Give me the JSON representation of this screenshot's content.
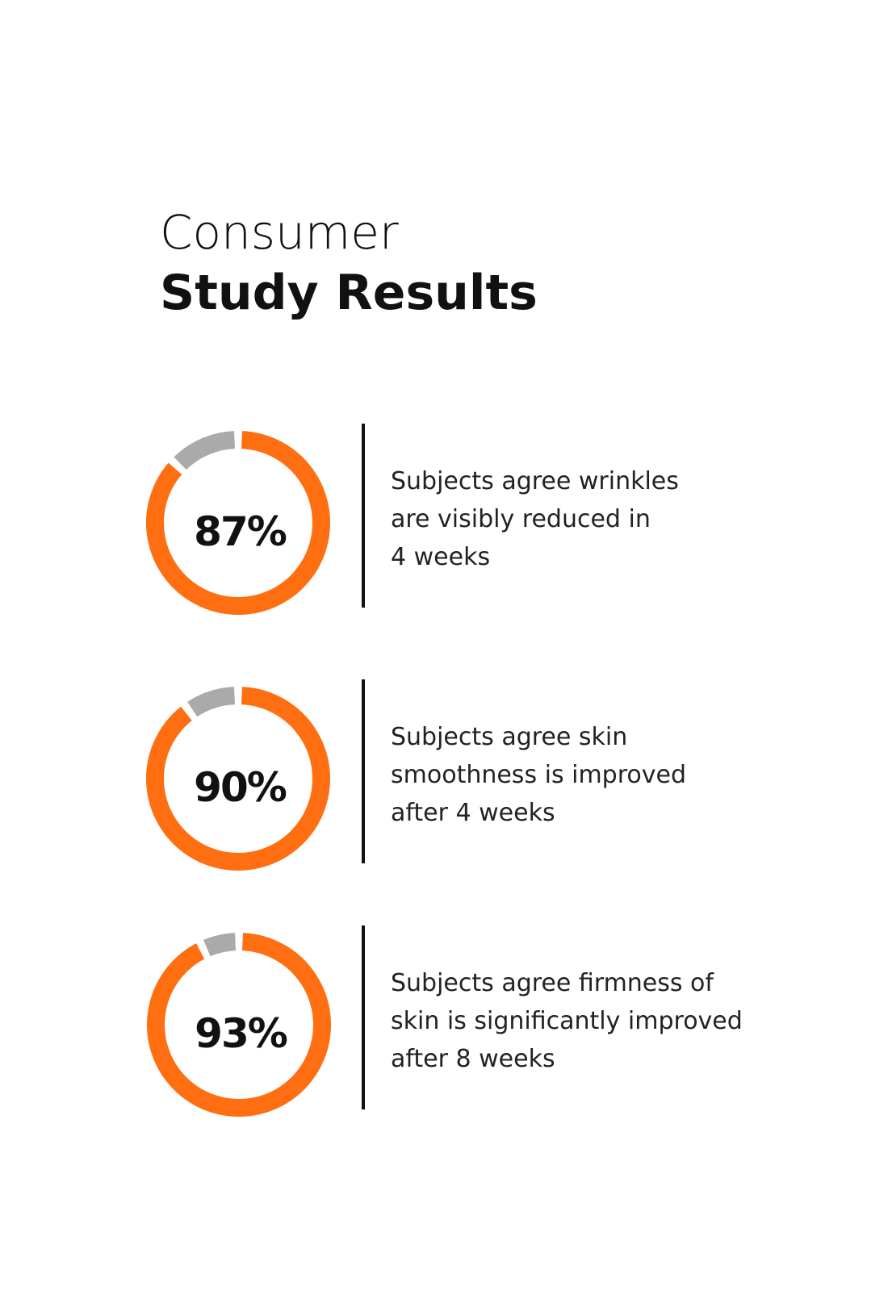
{
  "title": {
    "light": "Consumer",
    "bold": "Study Results"
  },
  "chart_data": [
    {
      "type": "donut",
      "values": [
        87
      ],
      "value_labels": [
        "87%"
      ],
      "color": "#ff6e10",
      "track_color": "#aaaaaa",
      "caption": [
        "Subjects agree wrinkles",
        "are visibly reduced in",
        "4 weeks"
      ]
    },
    {
      "type": "donut",
      "values": [
        90
      ],
      "value_labels": [
        "90%"
      ],
      "color": "#ff6e10",
      "track_color": "#aaaaaa",
      "caption": [
        "Subjects agree skin",
        "smoothness is improved",
        "after 4 weeks"
      ]
    },
    {
      "type": "donut",
      "values": [
        93
      ],
      "value_labels": [
        "93%"
      ],
      "color": "#ff6e10",
      "track_color": "#aaaaaa",
      "caption": [
        "Subjects agree firmness of",
        "skin is significantly improved",
        "after 8 weeks"
      ]
    }
  ]
}
